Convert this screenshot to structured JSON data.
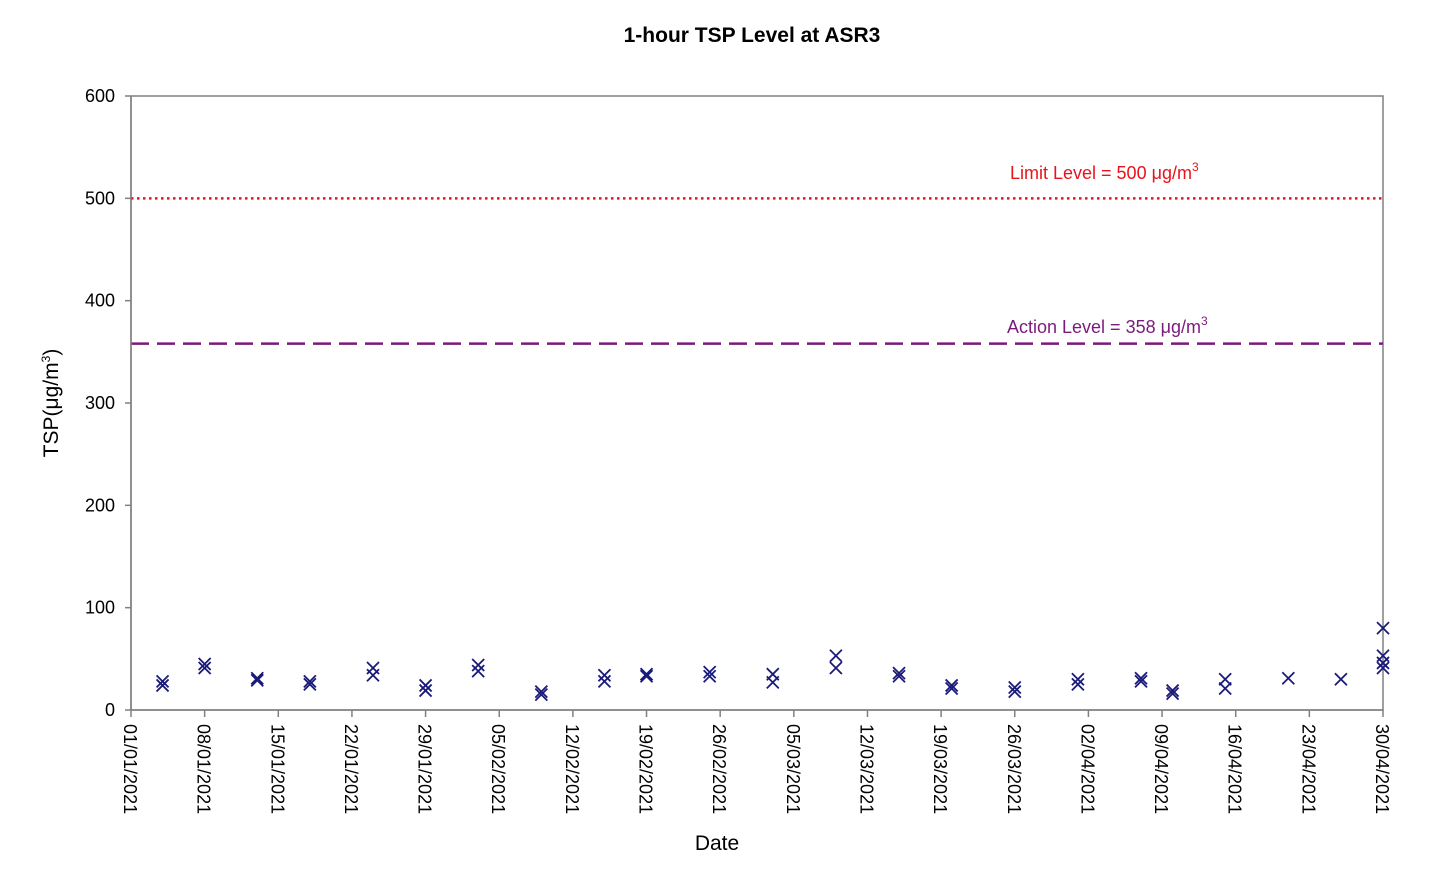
{
  "chart_data": {
    "type": "scatter",
    "title": "1-hour TSP Level at ASR3",
    "xlabel": "Date",
    "ylabel": {
      "pre": "TSP(",
      "mu": "μ",
      "mid": "g/m",
      "sup": "3",
      "post": ")"
    },
    "ylim": [
      0,
      600
    ],
    "yticks": [
      0,
      100,
      200,
      300,
      400,
      500,
      600
    ],
    "xlim": [
      "2021-01-01",
      "2021-04-30"
    ],
    "xticks": [
      "01/01/2021",
      "08/01/2021",
      "15/01/2021",
      "22/01/2021",
      "29/01/2021",
      "05/02/2021",
      "12/02/2021",
      "19/02/2021",
      "26/02/2021",
      "05/03/2021",
      "12/03/2021",
      "19/03/2021",
      "26/03/2021",
      "02/04/2021",
      "09/04/2021",
      "16/04/2021",
      "23/04/2021",
      "30/04/2021"
    ],
    "grid": false,
    "marker": "x",
    "marker_color": "#1a1a7a",
    "reference_lines": [
      {
        "label_pre": "Limit Level = 500 ",
        "label_mu": "μ",
        "label_mid": "g/m",
        "label_sup": "3",
        "value": 500,
        "color": "#e8141b",
        "style": "dotted"
      },
      {
        "label_pre": "Action Level = 358 ",
        "label_mu": "μ",
        "label_mid": "g/m",
        "label_sup": "3",
        "value": 358,
        "color": "#7b1a7b",
        "style": "dashed"
      }
    ],
    "series": [
      {
        "points": [
          [
            "2021-01-04",
            28
          ],
          [
            "2021-01-04",
            24
          ],
          [
            "2021-01-08",
            45
          ],
          [
            "2021-01-08",
            41
          ],
          [
            "2021-01-13",
            31
          ],
          [
            "2021-01-13",
            29
          ],
          [
            "2021-01-18",
            28
          ],
          [
            "2021-01-18",
            25
          ],
          [
            "2021-01-24",
            41
          ],
          [
            "2021-01-24",
            34
          ],
          [
            "2021-01-29",
            24
          ],
          [
            "2021-01-29",
            19
          ],
          [
            "2021-02-03",
            44
          ],
          [
            "2021-02-03",
            38
          ],
          [
            "2021-02-09",
            18
          ],
          [
            "2021-02-09",
            15
          ],
          [
            "2021-02-15",
            34
          ],
          [
            "2021-02-15",
            28
          ],
          [
            "2021-02-19",
            35
          ],
          [
            "2021-02-19",
            33
          ],
          [
            "2021-02-25",
            37
          ],
          [
            "2021-02-25",
            33
          ],
          [
            "2021-03-03",
            35
          ],
          [
            "2021-03-03",
            27
          ],
          [
            "2021-03-09",
            53
          ],
          [
            "2021-03-09",
            41
          ],
          [
            "2021-03-15",
            36
          ],
          [
            "2021-03-15",
            33
          ],
          [
            "2021-03-20",
            24
          ],
          [
            "2021-03-20",
            21
          ],
          [
            "2021-03-26",
            22
          ],
          [
            "2021-03-26",
            18
          ],
          [
            "2021-04-01",
            30
          ],
          [
            "2021-04-01",
            25
          ],
          [
            "2021-04-07",
            31
          ],
          [
            "2021-04-07",
            28
          ],
          [
            "2021-04-10",
            19
          ],
          [
            "2021-04-10",
            16
          ],
          [
            "2021-04-15",
            30
          ],
          [
            "2021-04-15",
            21
          ],
          [
            "2021-04-21",
            31
          ],
          [
            "2021-04-26",
            30
          ],
          [
            "2021-04-30",
            80
          ],
          [
            "2021-04-30",
            53
          ],
          [
            "2021-04-30",
            46
          ],
          [
            "2021-04-30",
            41
          ]
        ]
      }
    ]
  }
}
